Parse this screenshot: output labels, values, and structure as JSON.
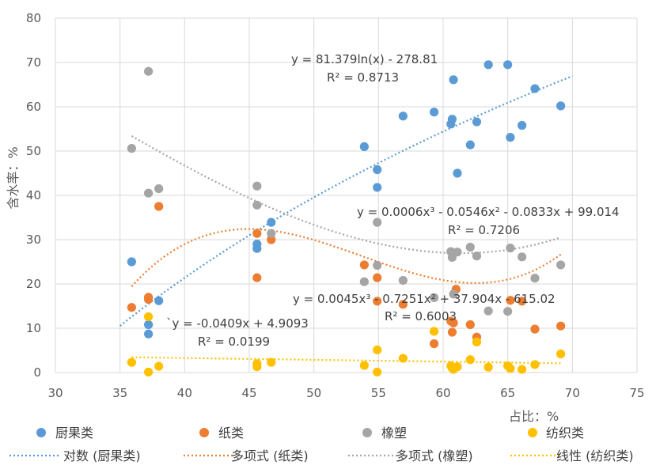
{
  "chart_data": {
    "type": "scatter",
    "title": "",
    "xlabel": "占比：%",
    "ylabel": "含水率：%",
    "xlim": [
      30,
      75
    ],
    "ylim": [
      0,
      80
    ],
    "xticks": [
      30,
      35,
      40,
      45,
      50,
      55,
      60,
      65,
      70,
      75
    ],
    "yticks": [
      0,
      10,
      20,
      30,
      40,
      50,
      60,
      70,
      80
    ],
    "grid": "vertical and horizontal",
    "legend_position": "bottom",
    "series": [
      {
        "name": "厨果类",
        "color": "#5B9BD5",
        "points": [
          [
            35.9,
            25.0
          ],
          [
            37.2,
            10.8
          ],
          [
            37.2,
            8.7
          ],
          [
            38.0,
            16.2
          ],
          [
            45.6,
            29.0
          ],
          [
            45.6,
            28.0
          ],
          [
            46.7,
            33.9
          ],
          [
            53.9,
            51.0
          ],
          [
            54.9,
            45.8
          ],
          [
            54.9,
            41.8
          ],
          [
            56.9,
            57.9
          ],
          [
            59.3,
            58.8
          ],
          [
            60.6,
            56.1
          ],
          [
            60.7,
            57.2
          ],
          [
            60.8,
            66.1
          ],
          [
            61.1,
            45.0
          ],
          [
            62.1,
            51.4
          ],
          [
            62.6,
            56.6
          ],
          [
            63.5,
            69.5
          ],
          [
            65.0,
            69.5
          ],
          [
            65.2,
            53.1
          ],
          [
            66.1,
            55.8
          ],
          [
            67.1,
            64.1
          ],
          [
            69.1,
            60.2
          ]
        ]
      },
      {
        "name": "纸类",
        "color": "#ED7D31",
        "points": [
          [
            35.9,
            14.7
          ],
          [
            37.2,
            17.0
          ],
          [
            37.2,
            16.5
          ],
          [
            38.0,
            37.5
          ],
          [
            45.6,
            31.4
          ],
          [
            45.6,
            21.4
          ],
          [
            46.7,
            30.0
          ],
          [
            53.9,
            24.3
          ],
          [
            54.9,
            21.4
          ],
          [
            54.9,
            16.1
          ],
          [
            56.9,
            15.4
          ],
          [
            59.3,
            6.5
          ],
          [
            60.6,
            11.6
          ],
          [
            60.7,
            9.1
          ],
          [
            60.8,
            11.2
          ],
          [
            61.0,
            18.8
          ],
          [
            62.1,
            10.8
          ],
          [
            62.6,
            8.0
          ],
          [
            65.2,
            16.3
          ],
          [
            66.1,
            16.1
          ],
          [
            67.1,
            9.8
          ],
          [
            69.1,
            10.5
          ]
        ]
      },
      {
        "name": "橡塑",
        "color": "#A5A5A5",
        "points": [
          [
            35.9,
            50.6
          ],
          [
            37.2,
            68.0
          ],
          [
            37.2,
            40.5
          ],
          [
            38.0,
            41.5
          ],
          [
            45.6,
            42.1
          ],
          [
            45.6,
            37.8
          ],
          [
            46.7,
            31.4
          ],
          [
            53.9,
            20.5
          ],
          [
            54.9,
            33.9
          ],
          [
            54.9,
            24.2
          ],
          [
            56.9,
            20.8
          ],
          [
            59.3,
            16.9
          ],
          [
            60.6,
            27.3
          ],
          [
            60.7,
            26.0
          ],
          [
            60.8,
            17.7
          ],
          [
            61.1,
            27.2
          ],
          [
            62.1,
            28.3
          ],
          [
            62.6,
            26.3
          ],
          [
            63.5,
            13.9
          ],
          [
            65.0,
            13.8
          ],
          [
            65.2,
            28.1
          ],
          [
            66.1,
            26.1
          ],
          [
            67.1,
            21.3
          ],
          [
            69.1,
            24.3
          ]
        ]
      },
      {
        "name": "纺织类",
        "color": "#FFC000",
        "points": [
          [
            35.9,
            2.3
          ],
          [
            37.2,
            12.6
          ],
          [
            37.2,
            0.1
          ],
          [
            38.0,
            1.4
          ],
          [
            45.6,
            2.0
          ],
          [
            45.6,
            1.3
          ],
          [
            46.7,
            2.3
          ],
          [
            53.9,
            1.6
          ],
          [
            54.9,
            5.1
          ],
          [
            54.9,
            0.1
          ],
          [
            56.9,
            3.2
          ],
          [
            59.3,
            9.3
          ],
          [
            60.6,
            1.5
          ],
          [
            60.7,
            1.0
          ],
          [
            60.8,
            0.7
          ],
          [
            61.1,
            1.3
          ],
          [
            62.1,
            2.9
          ],
          [
            62.6,
            6.9
          ],
          [
            63.5,
            1.2
          ],
          [
            65.0,
            1.5
          ],
          [
            65.2,
            0.9
          ],
          [
            66.1,
            0.7
          ],
          [
            67.1,
            1.8
          ],
          [
            69.1,
            4.2
          ]
        ]
      }
    ],
    "trendlines": [
      {
        "name": "对数 (厨果类)",
        "color": "#5B9BD5",
        "type": "log",
        "coefficients": [
          81.379,
          -278.81
        ],
        "x_range": [
          35,
          70
        ],
        "equation": "y = 81.379ln(x) - 278.81",
        "r2": "R² = 0.8713"
      },
      {
        "name": "多项式 (纸类)",
        "color": "#ED7D31",
        "type": "poly",
        "coefficients": [
          0.0045,
          -0.7251,
          37.904,
          -615.02
        ],
        "x_range": [
          35.9,
          69.1
        ],
        "equation": "y = 0.0045x³ - 0.7251x² + 37.904x - 615.02",
        "r2": "R² = 0.6003"
      },
      {
        "name": "多项式 (橡塑)",
        "color": "#A5A5A5",
        "type": "poly",
        "coefficients": [
          0.0006,
          -0.0546,
          -0.0833,
          99.014
        ],
        "x_range": [
          35.9,
          69.1
        ],
        "equation": "y = 0.0006x³ - 0.0546x² - 0.0833x + 99.014",
        "r2": "R² = 0.7206"
      },
      {
        "name": "线性 (纺织类)",
        "color": "#FFC000",
        "type": "linear",
        "coefficients": [
          -0.0409,
          4.9093
        ],
        "x_range": [
          35.9,
          69.1
        ],
        "equation": "`y = -0.0409x + 4.9093",
        "r2": "R² = 0.0199"
      }
    ]
  }
}
